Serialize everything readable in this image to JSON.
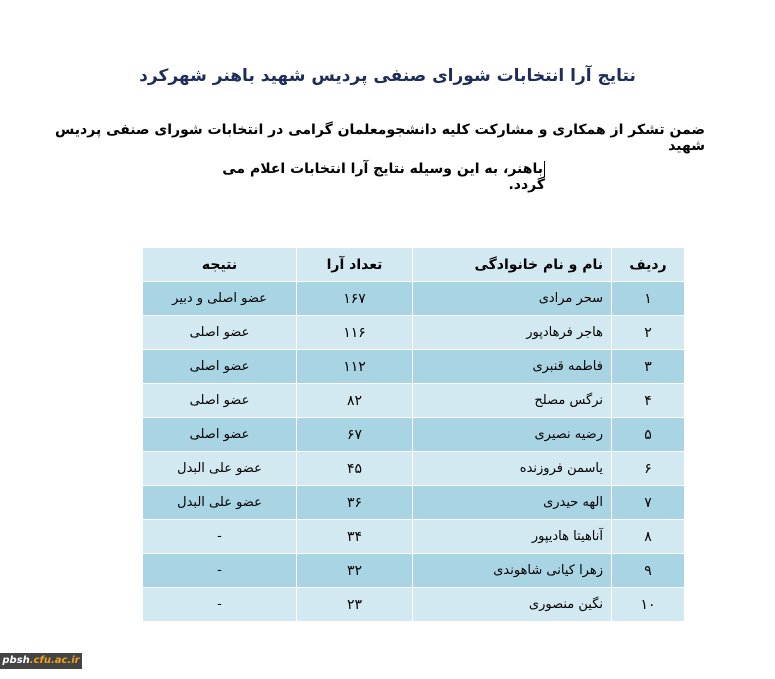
{
  "title": "نتایج آرا انتخابات شورای صنفی پردیس شهید باهنر شهرکرد",
  "intro_line1": "ضمن تشکر از همکاری و مشارکت کلیه دانشجومعلمان گرامی در انتخابات شورای صنفی پردیس شهید",
  "intro_line2": "باهنر، به این وسیله نتایج آرا انتخابات اعلام می گردد.",
  "table": {
    "headers": [
      "ردیف",
      "نام و نام خانوادگی",
      "تعداد آرا",
      "نتیجه"
    ],
    "rows": [
      [
        "۱",
        "سحر مرادی",
        "۱۶۷",
        "عضو اصلی و دبیر"
      ],
      [
        "۲",
        "هاجر فرهادپور",
        "۱۱۶",
        "عضو اصلی"
      ],
      [
        "۳",
        "فاطمه قنبری",
        "۱۱۲",
        "عضو اصلی"
      ],
      [
        "۴",
        "نرگس مصلح",
        "۸۲",
        "عضو اصلی"
      ],
      [
        "۵",
        "رضیه نصیری",
        "۶۷",
        "عضو اصلی"
      ],
      [
        "۶",
        "یاسمن فروزنده",
        "۴۵",
        "عضو علی البدل"
      ],
      [
        "۷",
        "الهه حیدری",
        "۳۶",
        "عضو علی البدل"
      ],
      [
        "۸",
        "آناهیتا هادیپور",
        "۳۴",
        "-"
      ],
      [
        "۹",
        "زهرا کیانی شاهوندی",
        "۳۲",
        "-"
      ],
      [
        "۱۰",
        "نگین منصوری",
        "۲۳",
        "-"
      ]
    ]
  },
  "watermark": {
    "left": "pbsh",
    "right": ".cfu.ac.ir"
  },
  "colors": {
    "title": "#1f2d5a",
    "row_dark": "#a9d4e3",
    "row_light": "#d3e9f2"
  }
}
